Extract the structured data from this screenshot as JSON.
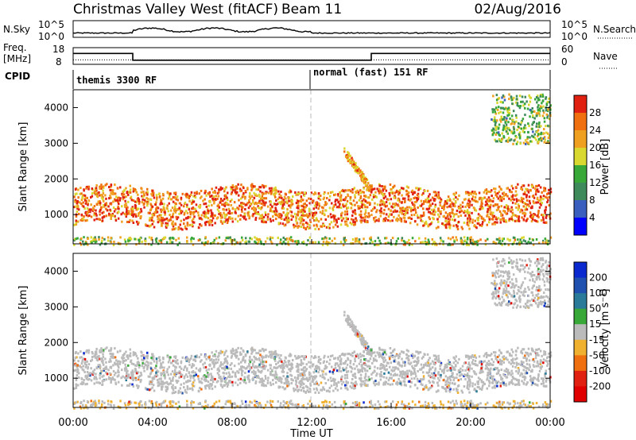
{
  "header": {
    "title": "Christmas Valley West (fitACF)",
    "beam": "Beam 11",
    "date": "02/Aug/2016"
  },
  "nsky_panel": {
    "label": "N.Sky",
    "right_label": "N.Search",
    "left_ticks": [
      "10^5",
      "10^0"
    ],
    "right_ticks": [
      "10^5",
      "10^0"
    ]
  },
  "freq_panel": {
    "label_line1": "Freq.",
    "label_line2": "[MHz]",
    "left_ticks": [
      "18",
      "8"
    ],
    "right_ticks": [
      "60",
      "0"
    ],
    "right_label": "Nave"
  },
  "cpid_panel": {
    "label": "CPID",
    "modes": [
      {
        "name": "themis 3300 RF"
      },
      {
        "name": "normal (fast) 151 RF"
      }
    ]
  },
  "x_axis": {
    "label": "Time UT",
    "ticks": [
      "00:00",
      "04:00",
      "08:00",
      "12:00",
      "16:00",
      "20:00",
      "00:00"
    ]
  },
  "power_panel": {
    "ylabel": "Slant Range [km]",
    "yticks": [
      "1000",
      "2000",
      "3000",
      "4000"
    ],
    "colorbar_label": "Power [dB]",
    "colorbar_ticks": [
      "4",
      "8",
      "12",
      "16",
      "20",
      "24",
      "28"
    ],
    "colors": [
      "#0000ff",
      "#3a5fbf",
      "#3e8a5a",
      "#38a838",
      "#d8d830",
      "#f0a020",
      "#f07010",
      "#e02010"
    ]
  },
  "velocity_panel": {
    "ylabel": "Slant Range [km]",
    "yticks": [
      "1000",
      "2000",
      "3000",
      "4000"
    ],
    "colorbar_label": "Velocity [m s⁻¹]",
    "colorbar_ticks": [
      "200",
      "100",
      "50",
      "15",
      "-15",
      "-50",
      "-100",
      "-200"
    ],
    "colors": [
      "#0a2ad0",
      "#2050b0",
      "#2a7a9a",
      "#38a838",
      "#bbbbbb",
      "#f0b030",
      "#f07010",
      "#e02010",
      "#e00000"
    ]
  },
  "chart_data": {
    "type": "heatmap",
    "title": "Christmas Valley West (fitACF)",
    "xlabel": "Time UT",
    "ylabel": "Slant Range [km]",
    "xlim": [
      0,
      24
    ],
    "ylim": [
      180,
      4500
    ],
    "x_tick_hours": [
      0,
      4,
      8,
      12,
      16,
      20,
      24
    ],
    "y_tick_values": [
      1000,
      2000,
      3000,
      4000
    ],
    "power_range_db": [
      0,
      30
    ],
    "velocity_range_ms": [
      -200,
      200
    ],
    "frequency_mhz_segments": [
      {
        "from_hour": 0,
        "to_hour": 3,
        "freq": 14.5
      },
      {
        "from_hour": 3,
        "to_hour": 15,
        "freq": 10.5
      },
      {
        "from_hour": 15,
        "to_hour": 24,
        "freq": 14.5
      }
    ],
    "nave_level": 16,
    "cpid_change_hour": 12,
    "scatter_regions": [
      {
        "name": "main band",
        "hour_start": 0,
        "hour_end": 24,
        "range_low_km": 700,
        "range_high_km": 1900,
        "typical_power_db": 24
      },
      {
        "name": "near-range echoes",
        "hour_start": 0,
        "hour_end": 24,
        "range_low_km": 180,
        "range_high_km": 400,
        "typical_power_db": 16
      },
      {
        "name": "rising arc",
        "hour_start": 13.6,
        "hour_end": 15.0,
        "range_low_km": 1700,
        "range_high_km": 2800,
        "typical_power_db": 22
      },
      {
        "name": "far range patches",
        "hour_start": 21,
        "hour_end": 24,
        "range_low_km": 3000,
        "range_high_km": 4400,
        "typical_power_db": 14
      }
    ]
  }
}
